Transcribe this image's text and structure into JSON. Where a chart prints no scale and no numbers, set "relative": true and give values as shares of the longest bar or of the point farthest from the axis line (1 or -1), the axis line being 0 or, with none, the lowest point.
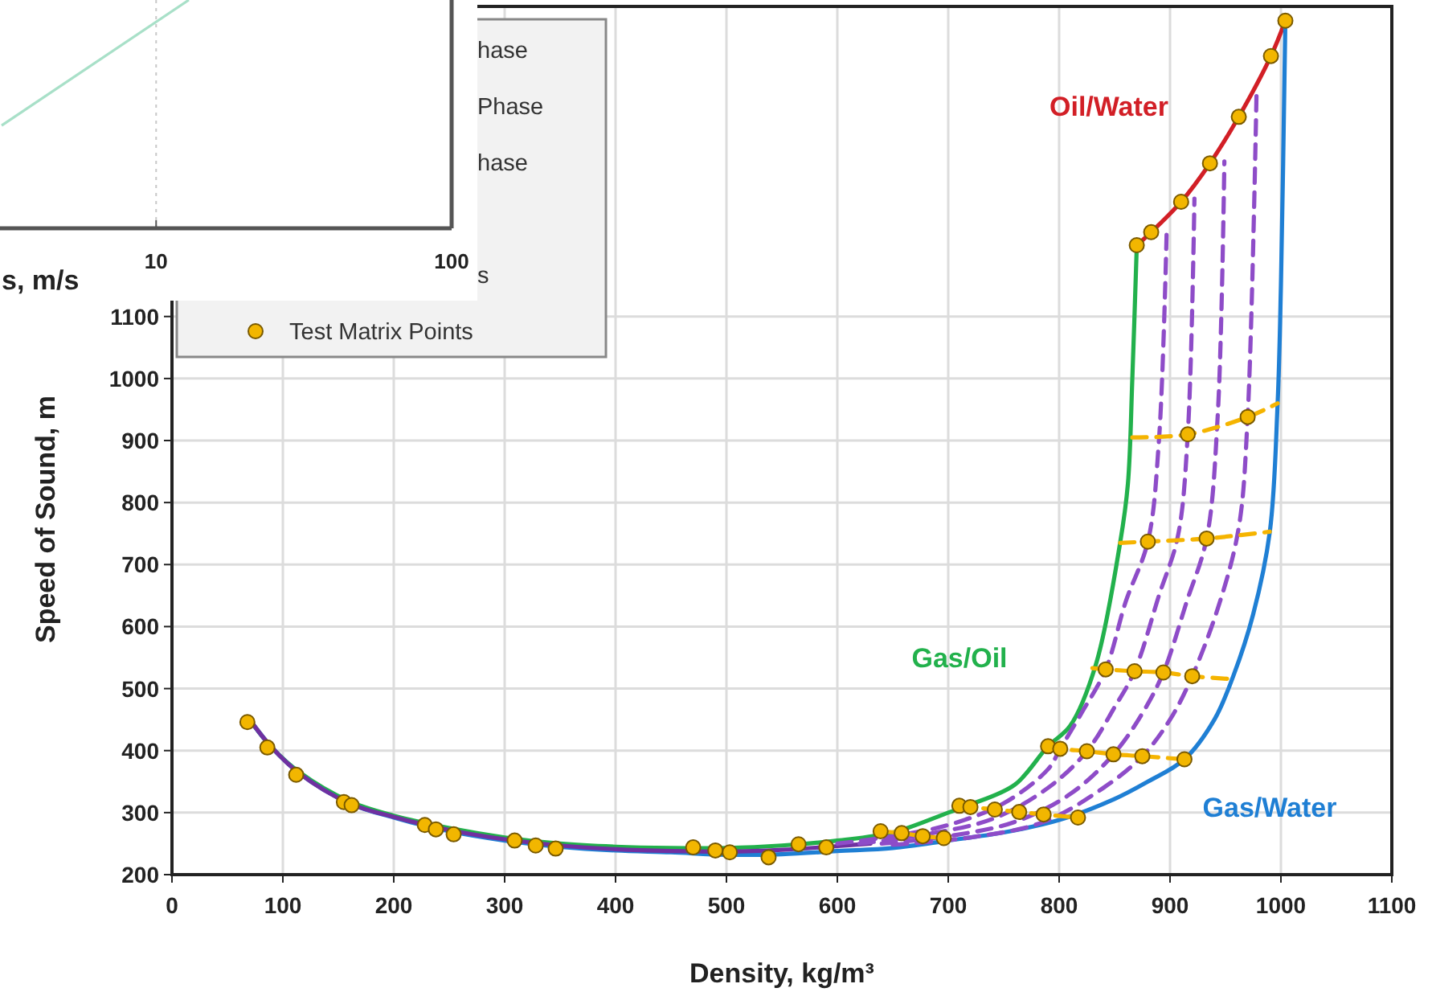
{
  "chart_data": [
    {
      "type": "line",
      "xlabel": "Density, kg/m³",
      "ylabel": "Speed of Sound, m",
      "xlim": [
        0,
        1100
      ],
      "xticks": [
        0,
        100,
        200,
        300,
        400,
        500,
        600,
        700,
        800,
        900,
        1000,
        1100
      ],
      "ylim": [
        200,
        1600
      ],
      "yticks": [
        200,
        300,
        400,
        500,
        600,
        700,
        800,
        900,
        1000,
        1100
      ],
      "grid": true,
      "legend": "top left",
      "annotations": [
        "hase",
        "Phase",
        "hase",
        "s"
      ],
      "series": [
        {
          "name": "Gas/Oil",
          "color": "#22b14c",
          "x": [
            70,
            90,
            115,
            160,
            200,
            250,
            300,
            350,
            400,
            450,
            500,
            550,
            600,
            650,
            700,
            720,
            760,
            790,
            810,
            833,
            855,
            862,
            866,
            870
          ],
          "values": [
            450,
            405,
            365,
            318,
            295,
            275,
            260,
            250,
            245,
            243,
            243,
            247,
            255,
            268,
            300,
            313,
            345,
            407,
            440,
            538,
            735,
            830,
            1000,
            1213
          ]
        },
        {
          "name": "Oil/Water",
          "color": "#d21f26",
          "x": [
            870,
            883,
            910,
            936,
            962,
            991,
            1004
          ],
          "values": [
            1215,
            1236,
            1285,
            1347,
            1422,
            1520,
            1577
          ]
        },
        {
          "name": "Gas/Water",
          "color": "#1f7fd4",
          "x": [
            70,
            90,
            115,
            160,
            200,
            250,
            300,
            350,
            400,
            450,
            500,
            550,
            600,
            650,
            700,
            750,
            800,
            850,
            880,
            913,
            940,
            957,
            975,
            990,
            997,
            1000,
            1004
          ],
          "values": [
            450,
            405,
            363,
            315,
            292,
            270,
            255,
            245,
            239,
            236,
            232,
            233,
            238,
            243,
            255,
            268,
            288,
            322,
            350,
            386,
            450,
            520,
            620,
            753,
            959,
            1150,
            1577
          ]
        },
        {
          "color": "#7030a0",
          "x": [
            70,
            90,
            115,
            160,
            200,
            250,
            300,
            350,
            400,
            450,
            500,
            550,
            600,
            630
          ],
          "values": [
            450,
            405,
            363,
            315,
            293,
            272,
            257,
            247,
            241,
            238,
            237,
            240,
            246,
            250
          ]
        },
        {
          "color": "#8e4cc8",
          "line_style": "dashed",
          "x": [
            600,
            650,
            700,
            750,
            790,
            801,
            820,
            842,
            860,
            880,
            890,
            897
          ],
          "values": [
            250,
            262,
            280,
            315,
            370,
            403,
            460,
            531,
            640,
            737,
            900,
            1240
          ]
        },
        {
          "color": "#8e4cc8",
          "line_style": "dashed",
          "x": [
            620,
            680,
            740,
            790,
            825,
            850,
            868,
            890,
            907,
            916,
            922
          ],
          "values": [
            250,
            265,
            290,
            340,
            399,
            470,
            528,
            650,
            745,
            910,
            1290
          ]
        },
        {
          "color": "#8e4cc8",
          "line_style": "dashed",
          "x": [
            640,
            700,
            760,
            810,
            849,
            875,
            894,
            915,
            933,
            943,
            949
          ],
          "values": [
            250,
            262,
            285,
            330,
            394,
            460,
            526,
            640,
            742,
            940,
            1350
          ]
        },
        {
          "color": "#8e4cc8",
          "line_style": "dashed",
          "x": [
            650,
            720,
            786,
            840,
            875,
            900,
            920,
            945,
            962,
            970,
            978
          ],
          "values": [
            248,
            260,
            285,
            340,
            391,
            450,
            520,
            640,
            760,
            938,
            1460
          ]
        },
        {
          "color": "#f5b400",
          "line_style": "dashed",
          "x": [
            866,
            916,
            970,
            997
          ],
          "values": [
            905,
            910,
            938,
            960
          ]
        },
        {
          "color": "#f5b400",
          "line_style": "dashed",
          "x": [
            855,
            880,
            933,
            990
          ],
          "values": [
            735,
            737,
            742,
            753
          ]
        },
        {
          "color": "#f5b400",
          "line_style": "dashed",
          "x": [
            830,
            842,
            868,
            894,
            920,
            958
          ],
          "values": [
            533,
            531,
            528,
            526,
            520,
            515
          ]
        },
        {
          "color": "#f5b400",
          "line_style": "dashed",
          "x": [
            790,
            801,
            825,
            849,
            875,
            913
          ],
          "values": [
            407,
            403,
            399,
            394,
            391,
            386
          ]
        },
        {
          "color": "#f5b400",
          "line_style": "dashed",
          "x": [
            710,
            720,
            742,
            764,
            786,
            817
          ],
          "values": [
            311,
            309,
            305,
            301,
            297,
            292
          ]
        },
        {
          "color": "#f5b400",
          "line_style": "dashed",
          "x": [
            639,
            658,
            677,
            696
          ],
          "values": [
            270,
            267,
            262,
            259
          ]
        },
        {
          "name": "Test Matrix Points",
          "type": "scatter",
          "marker": "circle",
          "color": "#f2b600",
          "x": [
            68,
            86,
            112,
            155,
            162,
            228,
            238,
            254,
            309,
            328,
            346,
            470,
            490,
            503,
            538,
            565,
            590,
            639,
            658,
            677,
            696,
            710,
            720,
            742,
            764,
            786,
            817,
            790,
            801,
            825,
            849,
            875,
            913,
            842,
            868,
            894,
            920,
            880,
            933,
            916,
            970,
            870,
            883,
            910,
            936,
            962,
            991,
            1004
          ],
          "values": [
            446,
            405,
            361,
            317,
            312,
            280,
            273,
            265,
            255,
            247,
            242,
            244,
            239,
            236,
            228,
            249,
            244,
            270,
            267,
            262,
            259,
            311,
            309,
            305,
            301,
            297,
            292,
            407,
            403,
            399,
            394,
            391,
            386,
            531,
            528,
            526,
            520,
            737,
            742,
            910,
            938,
            1215,
            1236,
            1285,
            1347,
            1422,
            1520,
            1577
          ]
        }
      ]
    },
    {
      "type": "line",
      "xlabel": "s, m/s",
      "log": "x",
      "xlim": [
        3,
        100
      ],
      "xticks": [
        10,
        100
      ],
      "relative": true,
      "grid": "x",
      "tick_labels": "x",
      "series": [
        {
          "color": "#a8e0c8",
          "x": [
            3,
            12.9
          ],
          "values": [
            0.45,
            1
          ]
        }
      ]
    }
  ]
}
